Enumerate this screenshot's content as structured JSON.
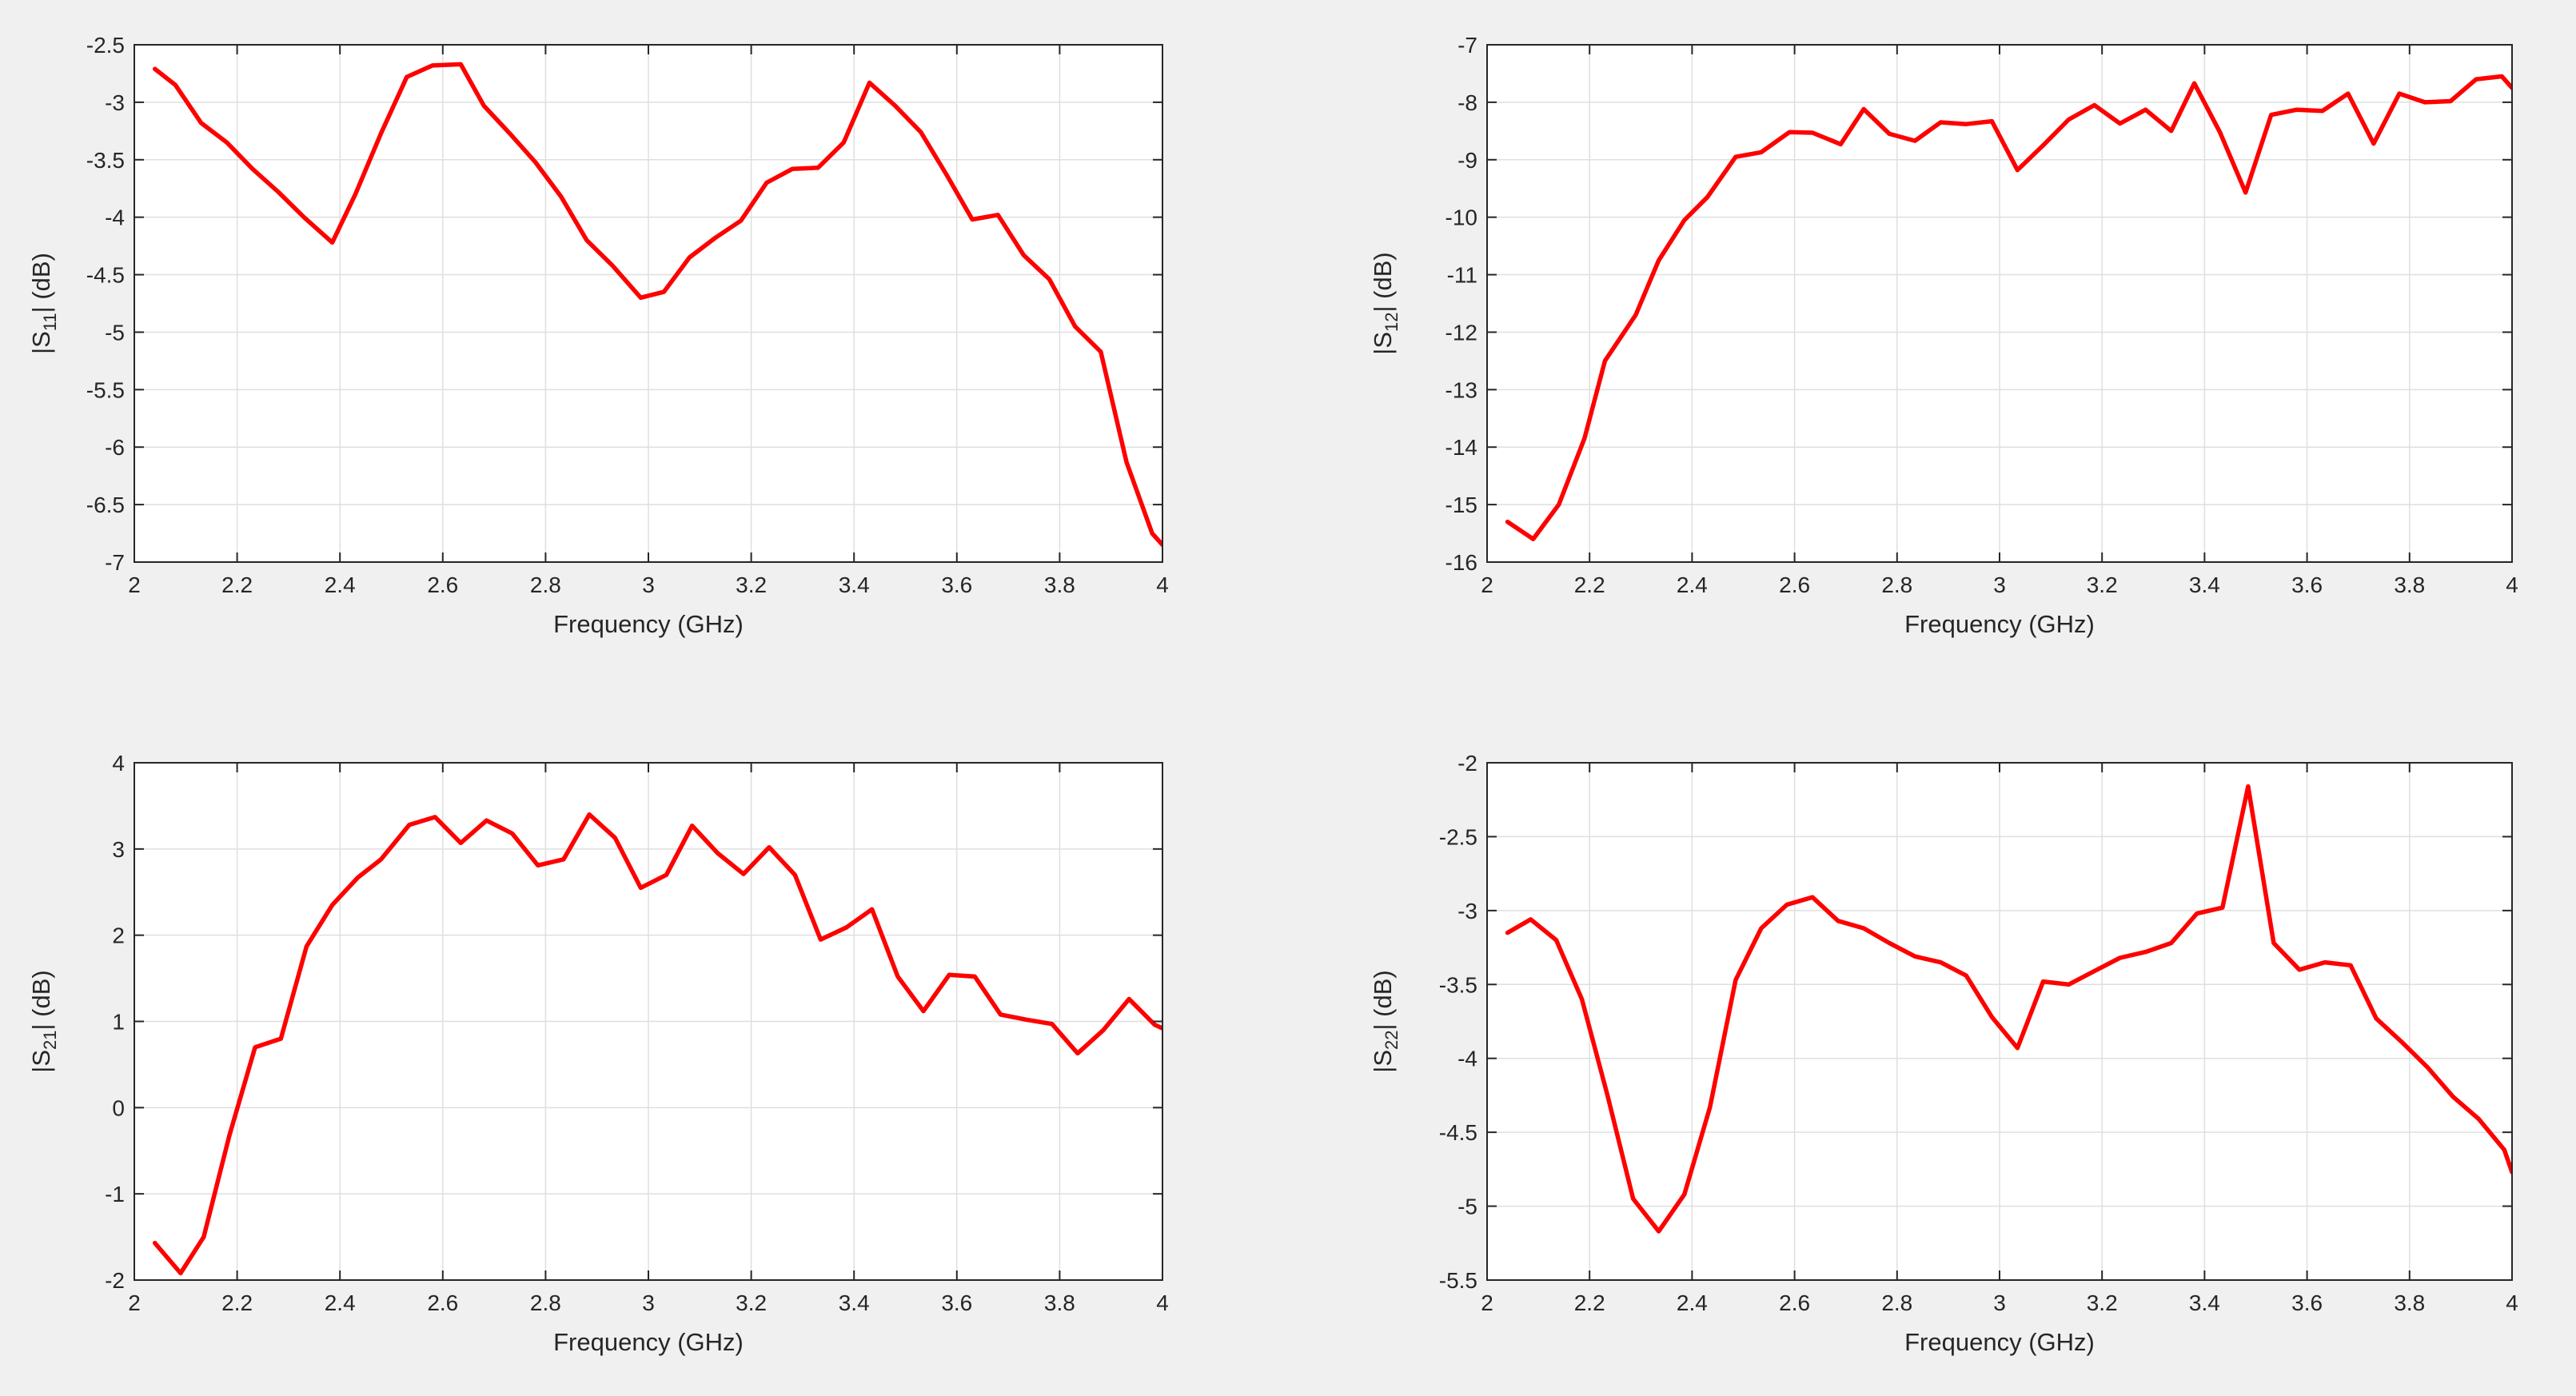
{
  "figure": {
    "background": "#f0f0f0",
    "line_color": "#ff0000",
    "grid_color": "#dfdfdf",
    "axes_color": "#262626"
  },
  "chart_data": [
    {
      "id": "s11",
      "type": "line",
      "xlabel": "Frequency (GHz)",
      "ylabel_main": "|S",
      "ylabel_sub": "11",
      "ylabel_tail": "| (dB)",
      "xlim": [
        2,
        4
      ],
      "ylim": [
        -7,
        -2.5
      ],
      "xticks": [
        2,
        2.2,
        2.4,
        2.6,
        2.8,
        3,
        3.2,
        3.4,
        3.6,
        3.8,
        4
      ],
      "xtick_labels": [
        "2",
        "2.2",
        "2.4",
        "2.6",
        "2.8",
        "3",
        "3.2",
        "3.4",
        "3.6",
        "3.8",
        "4"
      ],
      "yticks": [
        -7,
        -6.5,
        -6,
        -5.5,
        -5,
        -4.5,
        -4,
        -3.5,
        -3,
        -2.5
      ],
      "ytick_labels": [
        "-7",
        "-6.5",
        "-6",
        "-5.5",
        "-5",
        "-4.5",
        "-4",
        "-3.5",
        "-3",
        "-2.5"
      ],
      "grid": true,
      "series": [
        {
          "color": "#ff0000",
          "x": [
            2.04,
            2.08,
            2.13,
            2.18,
            2.23,
            2.28,
            2.33,
            2.385,
            2.43,
            2.48,
            2.53,
            2.58,
            2.635,
            2.68,
            2.73,
            2.78,
            2.83,
            2.88,
            2.93,
            2.985,
            3.03,
            3.08,
            3.13,
            3.18,
            3.23,
            3.28,
            3.33,
            3.38,
            3.43,
            3.48,
            3.53,
            3.58,
            3.63,
            3.68,
            3.73,
            3.78,
            3.83,
            3.88,
            3.93,
            3.98,
            4.0
          ],
          "y": [
            -2.71,
            -2.85,
            -3.18,
            -3.35,
            -3.58,
            -3.78,
            -4.0,
            -4.22,
            -3.8,
            -3.27,
            -2.78,
            -2.68,
            -2.67,
            -3.03,
            -3.27,
            -3.52,
            -3.82,
            -4.2,
            -4.42,
            -4.7,
            -4.65,
            -4.35,
            -4.18,
            -4.03,
            -3.7,
            -3.58,
            -3.57,
            -3.35,
            -2.83,
            -3.03,
            -3.26,
            -3.63,
            -4.02,
            -3.98,
            -4.33,
            -4.54,
            -4.95,
            -5.17,
            -6.13,
            -6.75,
            -6.85
          ]
        }
      ]
    },
    {
      "id": "s12",
      "type": "line",
      "xlabel": "Frequency (GHz)",
      "ylabel_main": "|S",
      "ylabel_sub": "12",
      "ylabel_tail": "| (dB)",
      "xlim": [
        2,
        4
      ],
      "ylim": [
        -16,
        -7
      ],
      "xticks": [
        2,
        2.2,
        2.4,
        2.6,
        2.8,
        3,
        3.2,
        3.4,
        3.6,
        3.8,
        4
      ],
      "xtick_labels": [
        "2",
        "2.2",
        "2.4",
        "2.6",
        "2.8",
        "3",
        "3.2",
        "3.4",
        "3.6",
        "3.8",
        "4"
      ],
      "yticks": [
        -16,
        -15,
        -14,
        -13,
        -12,
        -11,
        -10,
        -9,
        -8,
        -7
      ],
      "ytick_labels": [
        "-16",
        "-15",
        "-14",
        "-13",
        "-12",
        "-11",
        "-10",
        "-9",
        "-8",
        "-7"
      ],
      "grid": true,
      "series": [
        {
          "color": "#ff0000",
          "x": [
            2.04,
            2.09,
            2.14,
            2.19,
            2.23,
            2.29,
            2.335,
            2.385,
            2.43,
            2.485,
            2.535,
            2.59,
            2.635,
            2.69,
            2.735,
            2.785,
            2.835,
            2.885,
            2.935,
            2.985,
            3.035,
            3.085,
            3.135,
            3.185,
            3.235,
            3.285,
            3.335,
            3.38,
            3.43,
            3.48,
            3.53,
            3.58,
            3.63,
            3.68,
            3.73,
            3.78,
            3.83,
            3.88,
            3.93,
            3.98,
            4.0
          ],
          "y": [
            -15.3,
            -15.6,
            -15.0,
            -13.85,
            -12.5,
            -11.7,
            -10.75,
            -10.05,
            -9.65,
            -8.95,
            -8.87,
            -8.52,
            -8.53,
            -8.73,
            -8.12,
            -8.55,
            -8.67,
            -8.35,
            -8.38,
            -8.33,
            -9.18,
            -8.75,
            -8.3,
            -8.05,
            -8.37,
            -8.13,
            -8.5,
            -7.67,
            -8.52,
            -9.57,
            -8.22,
            -8.13,
            -8.15,
            -7.85,
            -8.72,
            -7.85,
            -8.0,
            -7.98,
            -7.6,
            -7.55,
            -7.75
          ]
        }
      ]
    },
    {
      "id": "s21",
      "type": "line",
      "xlabel": "Frequency (GHz)",
      "ylabel_main": "|S",
      "ylabel_sub": "21",
      "ylabel_tail": "| (dB)",
      "xlim": [
        2,
        4
      ],
      "ylim": [
        -2,
        4
      ],
      "xticks": [
        2,
        2.2,
        2.4,
        2.6,
        2.8,
        3,
        3.2,
        3.4,
        3.6,
        3.8,
        4
      ],
      "xtick_labels": [
        "2",
        "2.2",
        "2.4",
        "2.6",
        "2.8",
        "3",
        "3.2",
        "3.4",
        "3.6",
        "3.8",
        "4"
      ],
      "yticks": [
        -2,
        -1,
        0,
        1,
        2,
        3,
        4
      ],
      "ytick_labels": [
        "-2",
        "-1",
        "0",
        "1",
        "2",
        "3",
        "4"
      ],
      "grid": true,
      "series": [
        {
          "color": "#ff0000",
          "x": [
            2.04,
            2.09,
            2.135,
            2.185,
            2.235,
            2.285,
            2.335,
            2.385,
            2.435,
            2.48,
            2.535,
            2.585,
            2.635,
            2.685,
            2.735,
            2.785,
            2.835,
            2.885,
            2.935,
            2.985,
            3.035,
            3.085,
            3.135,
            3.185,
            3.235,
            3.285,
            3.335,
            3.385,
            3.435,
            3.485,
            3.535,
            3.585,
            3.635,
            3.685,
            3.735,
            3.785,
            3.835,
            3.885,
            3.935,
            3.985,
            4.0
          ],
          "y": [
            -1.57,
            -1.92,
            -1.5,
            -0.32,
            0.7,
            0.8,
            1.87,
            2.35,
            2.67,
            2.88,
            3.28,
            3.37,
            3.07,
            3.33,
            3.18,
            2.81,
            2.88,
            3.4,
            3.13,
            2.55,
            2.7,
            3.27,
            2.95,
            2.71,
            3.02,
            2.7,
            1.95,
            2.09,
            2.3,
            1.52,
            1.12,
            1.54,
            1.52,
            1.08,
            1.02,
            0.97,
            0.63,
            0.9,
            1.26,
            0.96,
            0.92
          ]
        }
      ]
    },
    {
      "id": "s22",
      "type": "line",
      "xlabel": "Frequency (GHz)",
      "ylabel_main": "|S",
      "ylabel_sub": "22",
      "ylabel_tail": "| (dB)",
      "xlim": [
        2,
        4
      ],
      "ylim": [
        -5.5,
        -2
      ],
      "xticks": [
        2,
        2.2,
        2.4,
        2.6,
        2.8,
        3,
        3.2,
        3.4,
        3.6,
        3.8,
        4
      ],
      "xtick_labels": [
        "2",
        "2.2",
        "2.4",
        "2.6",
        "2.8",
        "3",
        "3.2",
        "3.4",
        "3.6",
        "3.8",
        "4"
      ],
      "yticks": [
        -5.5,
        -5,
        -4.5,
        -4,
        -3.5,
        -3,
        -2.5,
        -2
      ],
      "ytick_labels": [
        "-5.5",
        "-5",
        "-4.5",
        "-4",
        "-3.5",
        "-3",
        "-2.5",
        "-2"
      ],
      "grid": true,
      "series": [
        {
          "color": "#ff0000",
          "x": [
            2.04,
            2.085,
            2.135,
            2.185,
            2.235,
            2.285,
            2.335,
            2.385,
            2.435,
            2.485,
            2.535,
            2.585,
            2.635,
            2.685,
            2.735,
            2.785,
            2.835,
            2.885,
            2.935,
            2.985,
            3.035,
            3.085,
            3.135,
            3.185,
            3.235,
            3.285,
            3.335,
            3.385,
            3.435,
            3.485,
            3.535,
            3.585,
            3.635,
            3.685,
            3.735,
            3.785,
            3.835,
            3.885,
            3.935,
            3.985,
            4.0
          ],
          "y": [
            -3.15,
            -3.06,
            -3.2,
            -3.6,
            -4.25,
            -4.95,
            -5.17,
            -4.92,
            -4.33,
            -3.47,
            -3.12,
            -2.96,
            -2.91,
            -3.07,
            -3.12,
            -3.22,
            -3.31,
            -3.35,
            -3.44,
            -3.72,
            -3.93,
            -3.48,
            -3.5,
            -3.41,
            -3.32,
            -3.28,
            -3.22,
            -3.02,
            -2.98,
            -2.16,
            -3.22,
            -3.4,
            -3.35,
            -3.37,
            -3.73,
            -3.89,
            -4.06,
            -4.26,
            -4.41,
            -4.62,
            -4.77
          ]
        }
      ]
    }
  ]
}
